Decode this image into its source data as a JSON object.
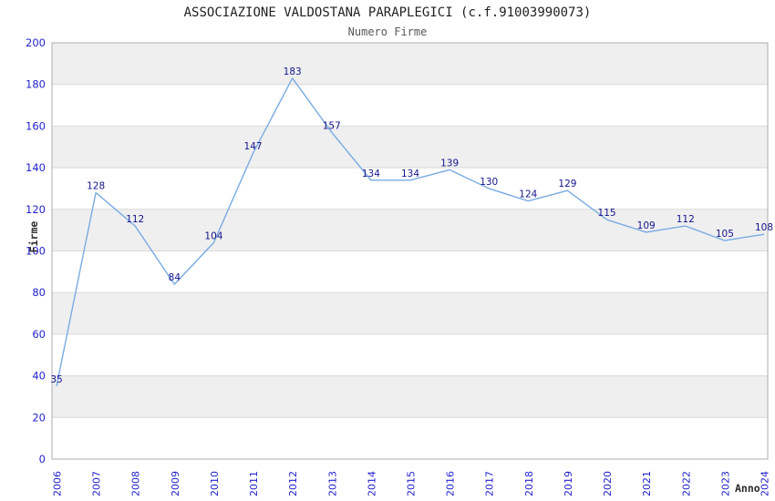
{
  "header": {
    "title": "ASSOCIAZIONE VALDOSTANA PARAPLEGICI (c.f.91003990073)",
    "subtitle": "Numero Firme"
  },
  "chart_data": {
    "type": "line",
    "title": "ASSOCIAZIONE VALDOSTANA PARAPLEGICI (c.f.91003990073)",
    "subtitle": "Numero Firme",
    "xlabel": "Anno",
    "ylabel": "Firme",
    "categories": [
      "2006",
      "2007",
      "2008",
      "2009",
      "2010",
      "2011",
      "2012",
      "2013",
      "2014",
      "2015",
      "2016",
      "2017",
      "2018",
      "2019",
      "2020",
      "2021",
      "2022",
      "2023",
      "2024"
    ],
    "values": [
      35,
      128,
      112,
      84,
      104,
      147,
      183,
      157,
      134,
      134,
      139,
      130,
      124,
      129,
      115,
      109,
      112,
      105,
      108
    ],
    "ylim": [
      0,
      200
    ],
    "yticks": [
      0,
      20,
      40,
      60,
      80,
      100,
      120,
      140,
      160,
      180,
      200
    ],
    "grid": "horizontal-bands",
    "legend": "none",
    "colors": {
      "line": "#79abe2",
      "point_label": "#14148c",
      "tick_label": "#2323cc",
      "band_gray": "#efefef",
      "band_white": "#ffffff",
      "gridline": "#d9d9d9",
      "plot_border": "#aeaeae",
      "title": "#222222",
      "subtitle": "#575757",
      "axis_title": "#2b2b2b"
    }
  }
}
